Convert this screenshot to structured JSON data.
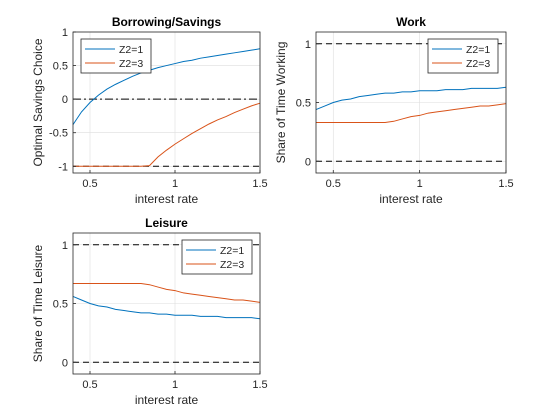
{
  "chart_data": [
    {
      "type": "line",
      "title": "Borrowing/Savings",
      "xlabel": "interest rate",
      "ylabel": "Optimal Savings Choice",
      "xlim": [
        0.4,
        1.5
      ],
      "ylim": [
        -1.1,
        1.0
      ],
      "xticks": [
        0.5,
        1,
        1.5
      ],
      "xtick_labels": [
        "0.5",
        "1",
        "1.5"
      ],
      "yticks": [
        -1,
        -0.5,
        0,
        0.5,
        1
      ],
      "ytick_labels": [
        "-1",
        "-0.5",
        "0",
        "0.5",
        "1"
      ],
      "grid": true,
      "legend_position": "top-left",
      "ref_lines": [
        {
          "y": -1,
          "style": "dashed"
        },
        {
          "y": 0,
          "style": "dashdot"
        }
      ],
      "x": [
        0.4,
        0.45,
        0.5,
        0.55,
        0.6,
        0.65,
        0.7,
        0.75,
        0.8,
        0.85,
        0.9,
        0.95,
        1.0,
        1.05,
        1.1,
        1.15,
        1.2,
        1.25,
        1.3,
        1.35,
        1.4,
        1.45,
        1.5
      ],
      "series": [
        {
          "name": "Z2=1",
          "color": "#0072BD",
          "values": [
            -0.38,
            -0.19,
            -0.05,
            0.06,
            0.15,
            0.22,
            0.28,
            0.34,
            0.39,
            0.43,
            0.47,
            0.5,
            0.53,
            0.56,
            0.58,
            0.61,
            0.63,
            0.65,
            0.67,
            0.69,
            0.71,
            0.73,
            0.75
          ]
        },
        {
          "name": "Z2=3",
          "color": "#D95319",
          "values": [
            -1.0,
            -1.0,
            -1.0,
            -1.0,
            -1.0,
            -1.0,
            -1.0,
            -1.0,
            -1.0,
            -0.99,
            -0.86,
            -0.76,
            -0.67,
            -0.59,
            -0.51,
            -0.44,
            -0.37,
            -0.31,
            -0.26,
            -0.2,
            -0.15,
            -0.1,
            -0.06
          ]
        }
      ]
    },
    {
      "type": "line",
      "title": "Work",
      "xlabel": "interest rate",
      "ylabel": "Share of Time Working",
      "xlim": [
        0.4,
        1.5
      ],
      "ylim": [
        -0.1,
        1.1
      ],
      "xticks": [
        0.5,
        1,
        1.5
      ],
      "xtick_labels": [
        "0.5",
        "1",
        "1.5"
      ],
      "yticks": [
        0,
        0.5,
        1
      ],
      "ytick_labels": [
        "0",
        "0.5",
        "1"
      ],
      "grid": true,
      "legend_position": "top-right",
      "ref_lines": [
        {
          "y": 0,
          "style": "dashed"
        },
        {
          "y": 1,
          "style": "dashed"
        }
      ],
      "x": [
        0.4,
        0.45,
        0.5,
        0.55,
        0.6,
        0.65,
        0.7,
        0.75,
        0.8,
        0.85,
        0.9,
        0.95,
        1.0,
        1.05,
        1.1,
        1.15,
        1.2,
        1.25,
        1.3,
        1.35,
        1.4,
        1.45,
        1.5
      ],
      "series": [
        {
          "name": "Z2=1",
          "color": "#0072BD",
          "values": [
            0.44,
            0.47,
            0.5,
            0.52,
            0.53,
            0.55,
            0.56,
            0.57,
            0.58,
            0.58,
            0.59,
            0.59,
            0.6,
            0.6,
            0.6,
            0.61,
            0.61,
            0.61,
            0.62,
            0.62,
            0.62,
            0.62,
            0.63
          ]
        },
        {
          "name": "Z2=3",
          "color": "#D95319",
          "values": [
            0.33,
            0.33,
            0.33,
            0.33,
            0.33,
            0.33,
            0.33,
            0.33,
            0.33,
            0.34,
            0.36,
            0.38,
            0.39,
            0.41,
            0.42,
            0.43,
            0.44,
            0.45,
            0.46,
            0.47,
            0.47,
            0.48,
            0.49
          ]
        }
      ]
    },
    {
      "type": "line",
      "title": "Leisure",
      "xlabel": "interest rate",
      "ylabel": "Share of Time Leisure",
      "xlim": [
        0.4,
        1.5
      ],
      "ylim": [
        -0.1,
        1.1
      ],
      "xticks": [
        0.5,
        1,
        1.5
      ],
      "xtick_labels": [
        "0.5",
        "1",
        "1.5"
      ],
      "yticks": [
        0,
        0.5,
        1
      ],
      "ytick_labels": [
        "0",
        "0.5",
        "1"
      ],
      "grid": true,
      "legend_position": "top-right",
      "ref_lines": [
        {
          "y": 0,
          "style": "dashed"
        },
        {
          "y": 1,
          "style": "dashed"
        }
      ],
      "x": [
        0.4,
        0.45,
        0.5,
        0.55,
        0.6,
        0.65,
        0.7,
        0.75,
        0.8,
        0.85,
        0.9,
        0.95,
        1.0,
        1.05,
        1.1,
        1.15,
        1.2,
        1.25,
        1.3,
        1.35,
        1.4,
        1.45,
        1.5
      ],
      "series": [
        {
          "name": "Z2=1",
          "color": "#0072BD",
          "values": [
            0.56,
            0.53,
            0.5,
            0.48,
            0.47,
            0.45,
            0.44,
            0.43,
            0.42,
            0.42,
            0.41,
            0.41,
            0.4,
            0.4,
            0.4,
            0.39,
            0.39,
            0.39,
            0.38,
            0.38,
            0.38,
            0.38,
            0.37
          ]
        },
        {
          "name": "Z2=3",
          "color": "#D95319",
          "values": [
            0.67,
            0.67,
            0.67,
            0.67,
            0.67,
            0.67,
            0.67,
            0.67,
            0.67,
            0.66,
            0.64,
            0.62,
            0.61,
            0.59,
            0.58,
            0.57,
            0.56,
            0.55,
            0.54,
            0.53,
            0.53,
            0.52,
            0.51
          ]
        }
      ]
    }
  ]
}
